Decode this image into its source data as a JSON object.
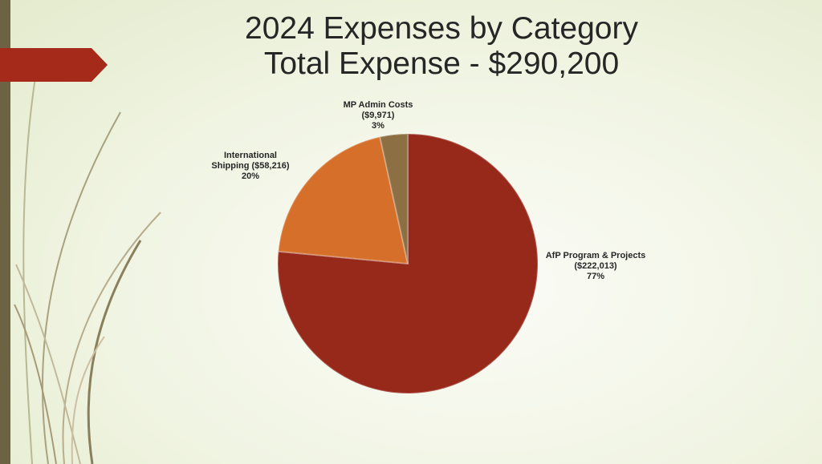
{
  "chart_data": {
    "type": "pie",
    "title": "2024 Expenses by Category",
    "subtitle": "Total Expense - $290,200",
    "slices": [
      {
        "label": "AfP Program & Projects",
        "amount_label": "($222,013)",
        "pct_label": "77%",
        "value": 222013,
        "color": "#96291a"
      },
      {
        "label": "International Shipping",
        "amount_label": "($58,216)",
        "pct_label": "20%",
        "value": 58216,
        "color": "#d66f2a"
      },
      {
        "label": "MP Admin Costs",
        "amount_label": "($9,971)",
        "pct_label": "3%",
        "value": 9971,
        "color": "#8c7043"
      }
    ],
    "legend": "none"
  },
  "theme": {
    "accent_arrow": "#a52a1a",
    "side_bar": "#6b6344"
  }
}
